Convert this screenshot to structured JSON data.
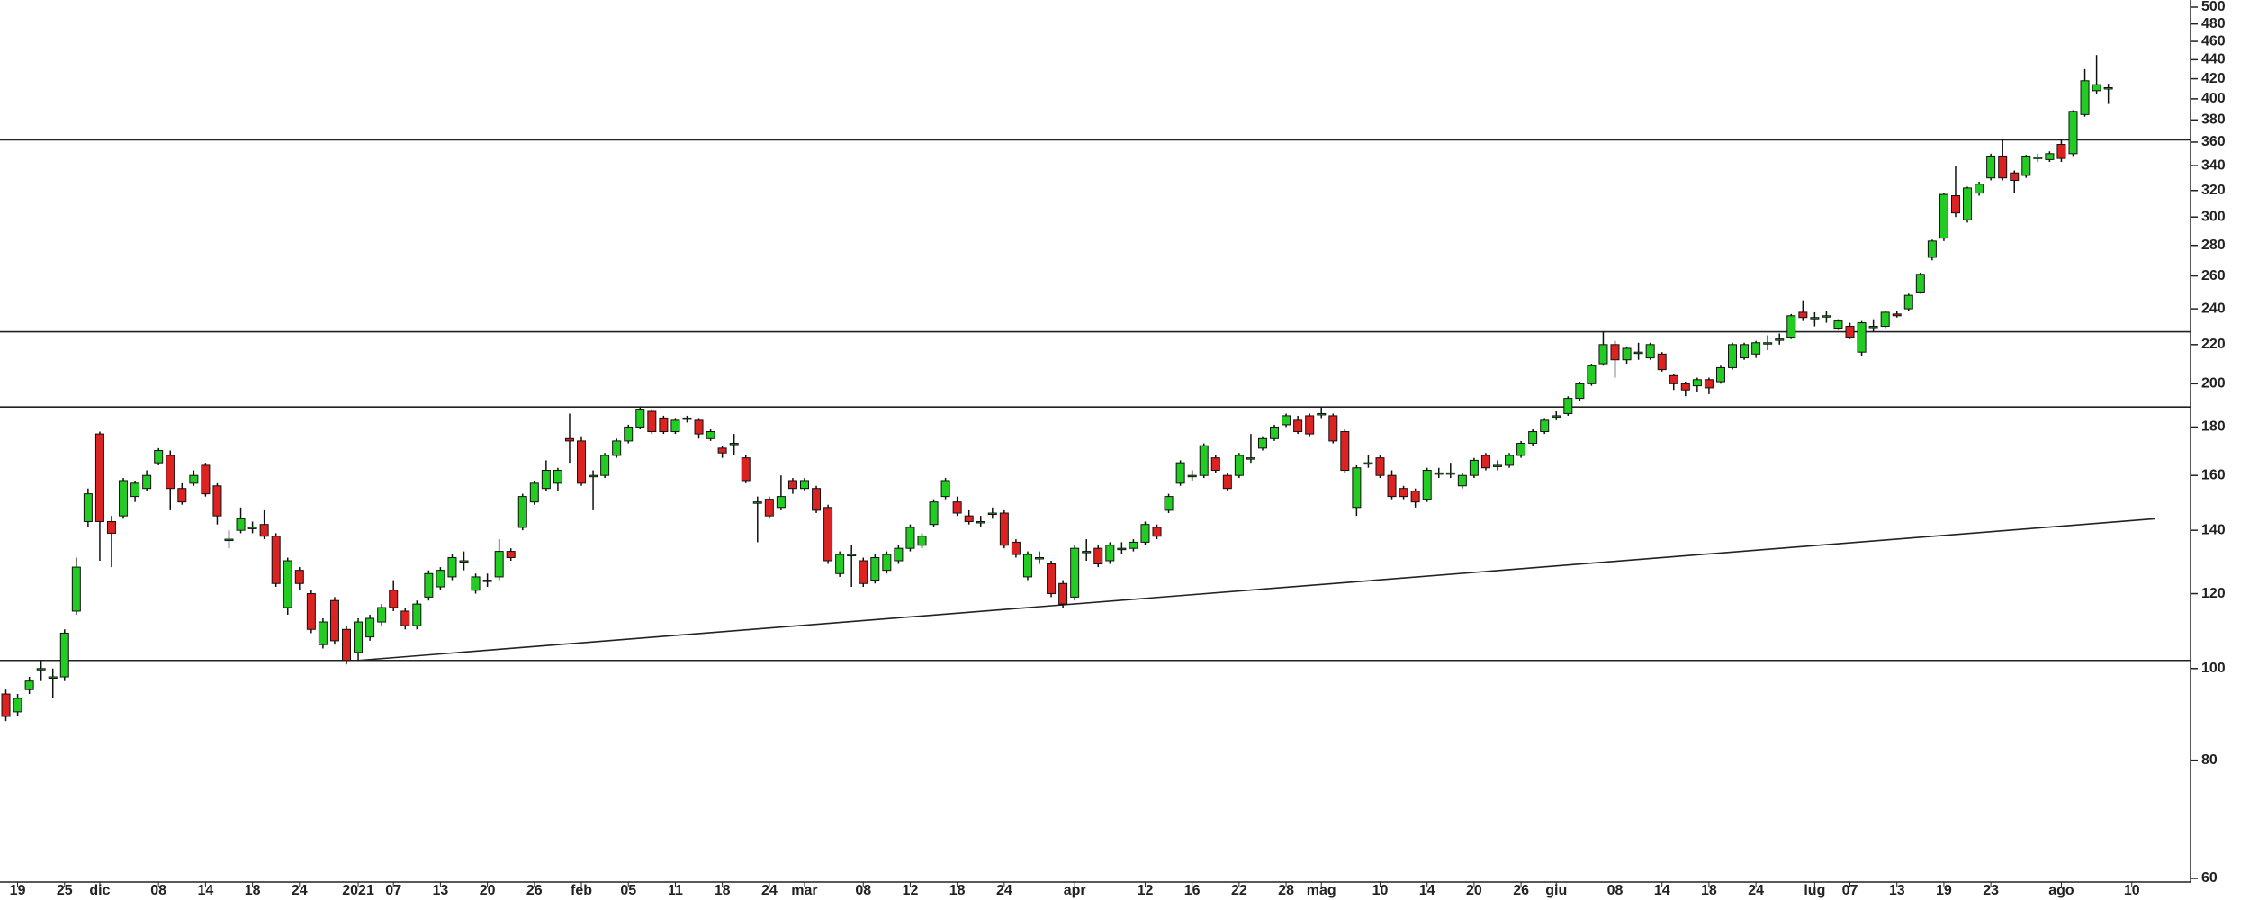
{
  "chart_data": {
    "type": "candlestick",
    "log_scale": true,
    "up_color": "#22cc22",
    "down_color": "#dd2222",
    "outline_color": "#111111",
    "line_color": "#222222",
    "xlim": [
      -0.5,
      186
    ],
    "ylim": [
      60,
      500
    ],
    "yticks": [
      60,
      80,
      100,
      120,
      140,
      160,
      180,
      200,
      220,
      240,
      260,
      280,
      300,
      320,
      340,
      360,
      380,
      400,
      420,
      440,
      460,
      480,
      500
    ],
    "xticks": [
      {
        "value": 1,
        "label": "19"
      },
      {
        "value": 5,
        "label": "25"
      },
      {
        "value": 8,
        "label": "dic"
      },
      {
        "value": 13,
        "label": "08"
      },
      {
        "value": 17,
        "label": "14"
      },
      {
        "value": 21,
        "label": "18"
      },
      {
        "value": 25,
        "label": "24"
      },
      {
        "value": 30,
        "label": "2021"
      },
      {
        "value": 33,
        "label": "07"
      },
      {
        "value": 37,
        "label": "13"
      },
      {
        "value": 41,
        "label": "20"
      },
      {
        "value": 45,
        "label": "26"
      },
      {
        "value": 49,
        "label": "feb"
      },
      {
        "value": 53,
        "label": "05"
      },
      {
        "value": 57,
        "label": "11"
      },
      {
        "value": 61,
        "label": "18"
      },
      {
        "value": 65,
        "label": "24"
      },
      {
        "value": 68,
        "label": "mar"
      },
      {
        "value": 73,
        "label": "08"
      },
      {
        "value": 77,
        "label": "12"
      },
      {
        "value": 81,
        "label": "18"
      },
      {
        "value": 85,
        "label": "24"
      },
      {
        "value": 91,
        "label": "apr"
      },
      {
        "value": 97,
        "label": "12"
      },
      {
        "value": 101,
        "label": "16"
      },
      {
        "value": 105,
        "label": "22"
      },
      {
        "value": 109,
        "label": "28"
      },
      {
        "value": 112,
        "label": "mag"
      },
      {
        "value": 117,
        "label": "10"
      },
      {
        "value": 121,
        "label": "14"
      },
      {
        "value": 125,
        "label": "20"
      },
      {
        "value": 129,
        "label": "26"
      },
      {
        "value": 132,
        "label": "giu"
      },
      {
        "value": 137,
        "label": "08"
      },
      {
        "value": 141,
        "label": "14"
      },
      {
        "value": 145,
        "label": "18"
      },
      {
        "value": 149,
        "label": "24"
      },
      {
        "value": 154,
        "label": "lug"
      },
      {
        "value": 157,
        "label": "07"
      },
      {
        "value": 161,
        "label": "13"
      },
      {
        "value": 165,
        "label": "19"
      },
      {
        "value": 169,
        "label": "23"
      },
      {
        "value": 175,
        "label": "ago"
      },
      {
        "value": 181,
        "label": "10"
      }
    ],
    "hlines": [
      102,
      189,
      227,
      362
    ],
    "trendline": {
      "x": [
        30,
        183
      ],
      "y": [
        102,
        144
      ]
    },
    "candles": [
      [
        94,
        95,
        88,
        89
      ],
      [
        90,
        94,
        89,
        93
      ],
      [
        95,
        98,
        94,
        97
      ],
      [
        100,
        102,
        97,
        100
      ],
      [
        98,
        100,
        93,
        98
      ],
      [
        98,
        110,
        97,
        109
      ],
      [
        115,
        131,
        114,
        128
      ],
      [
        143,
        155,
        141,
        153
      ],
      [
        177,
        178,
        130,
        143
      ],
      [
        143,
        145,
        128,
        139
      ],
      [
        145,
        159,
        144,
        158
      ],
      [
        152,
        158,
        150,
        157
      ],
      [
        155,
        162,
        154,
        160
      ],
      [
        165,
        171,
        164,
        170
      ],
      [
        168,
        170,
        147,
        155
      ],
      [
        155,
        157,
        149,
        150
      ],
      [
        157,
        162,
        156,
        160
      ],
      [
        164,
        165,
        152,
        153
      ],
      [
        156,
        157,
        142,
        145
      ],
      [
        137,
        140,
        134,
        137
      ],
      [
        140,
        148,
        139,
        144
      ],
      [
        141,
        143,
        139,
        141
      ],
      [
        142,
        147,
        137,
        138
      ],
      [
        138,
        139,
        122,
        123
      ],
      [
        116,
        131,
        114,
        130
      ],
      [
        127,
        128,
        121,
        123
      ],
      [
        120,
        121,
        109,
        110
      ],
      [
        106,
        113,
        105,
        112
      ],
      [
        118,
        119,
        106,
        107
      ],
      [
        110,
        111,
        101,
        102
      ],
      [
        104,
        113,
        102,
        112
      ],
      [
        108,
        114,
        107,
        113
      ],
      [
        112,
        117,
        111,
        116
      ],
      [
        121,
        124,
        115,
        116
      ],
      [
        115,
        116,
        110,
        111
      ],
      [
        111,
        118,
        110,
        117
      ],
      [
        119,
        127,
        118,
        126
      ],
      [
        122,
        128,
        121,
        127
      ],
      [
        125,
        132,
        124,
        131
      ],
      [
        130,
        133,
        127,
        130
      ],
      [
        121,
        126,
        120,
        125
      ],
      [
        124,
        126,
        122,
        124
      ],
      [
        125,
        137,
        124,
        133
      ],
      [
        133,
        134,
        130,
        131
      ],
      [
        141,
        153,
        140,
        152
      ],
      [
        150,
        158,
        149,
        157
      ],
      [
        155,
        166,
        154,
        162
      ],
      [
        157,
        163,
        154,
        162
      ],
      [
        175,
        186,
        165,
        174
      ],
      [
        174,
        176,
        156,
        157
      ],
      [
        160,
        162,
        147,
        160
      ],
      [
        160,
        169,
        159,
        168
      ],
      [
        168,
        175,
        167,
        174
      ],
      [
        174,
        181,
        173,
        180
      ],
      [
        180,
        189,
        179,
        188
      ],
      [
        187,
        188,
        177,
        178
      ],
      [
        184,
        185,
        177,
        178
      ],
      [
        178,
        184,
        177,
        183
      ],
      [
        184,
        185,
        182,
        184
      ],
      [
        183,
        184,
        175,
        177
      ],
      [
        175,
        179,
        174,
        178
      ],
      [
        171,
        172,
        167,
        169
      ],
      [
        173,
        177,
        168,
        173
      ],
      [
        167,
        168,
        157,
        158
      ],
      [
        150,
        152,
        136,
        150
      ],
      [
        151,
        152,
        144,
        145
      ],
      [
        148,
        160,
        147,
        152
      ],
      [
        158,
        159,
        153,
        155
      ],
      [
        155,
        159,
        154,
        158
      ],
      [
        155,
        156,
        146,
        147
      ],
      [
        148,
        149,
        129,
        130
      ],
      [
        126,
        133,
        125,
        132
      ],
      [
        132,
        135,
        122,
        132
      ],
      [
        130,
        131,
        122,
        123
      ],
      [
        124,
        132,
        123,
        131
      ],
      [
        127,
        133,
        126,
        132
      ],
      [
        130,
        135,
        129,
        134
      ],
      [
        134,
        142,
        133,
        141
      ],
      [
        135,
        139,
        134,
        138
      ],
      [
        142,
        151,
        141,
        150
      ],
      [
        152,
        159,
        151,
        158
      ],
      [
        150,
        152,
        145,
        146
      ],
      [
        145,
        147,
        142,
        143
      ],
      [
        143,
        145,
        141,
        143
      ],
      [
        146,
        148,
        144,
        146
      ],
      [
        146,
        147,
        134,
        135
      ],
      [
        136,
        137,
        131,
        132
      ],
      [
        125,
        133,
        124,
        132
      ],
      [
        131,
        133,
        129,
        131
      ],
      [
        129,
        130,
        119,
        120
      ],
      [
        123,
        124,
        116,
        117
      ],
      [
        119,
        135,
        118,
        134
      ],
      [
        133,
        137,
        130,
        133
      ],
      [
        134,
        135,
        128,
        129
      ],
      [
        130,
        136,
        129,
        135
      ],
      [
        134,
        136,
        132,
        134
      ],
      [
        134,
        137,
        133,
        136
      ],
      [
        136,
        143,
        135,
        142
      ],
      [
        141,
        142,
        137,
        138
      ],
      [
        147,
        153,
        146,
        152
      ],
      [
        157,
        166,
        156,
        165
      ],
      [
        160,
        162,
        158,
        160
      ],
      [
        160,
        173,
        159,
        172
      ],
      [
        167,
        168,
        161,
        162
      ],
      [
        160,
        161,
        154,
        155
      ],
      [
        160,
        169,
        159,
        168
      ],
      [
        167,
        177,
        165,
        167
      ],
      [
        171,
        176,
        170,
        175
      ],
      [
        175,
        181,
        174,
        180
      ],
      [
        181,
        186,
        180,
        185
      ],
      [
        183,
        185,
        177,
        178
      ],
      [
        185,
        186,
        176,
        177
      ],
      [
        186,
        189,
        184,
        186
      ],
      [
        185,
        186,
        173,
        174
      ],
      [
        178,
        179,
        161,
        162
      ],
      [
        148,
        164,
        145,
        163
      ],
      [
        165,
        168,
        163,
        165
      ],
      [
        167,
        168,
        159,
        160
      ],
      [
        160,
        162,
        151,
        152
      ],
      [
        155,
        156,
        151,
        152
      ],
      [
        154,
        155,
        148,
        150
      ],
      [
        151,
        163,
        150,
        162
      ],
      [
        161,
        163,
        159,
        161
      ],
      [
        161,
        165,
        159,
        161
      ],
      [
        156,
        161,
        155,
        160
      ],
      [
        160,
        167,
        159,
        166
      ],
      [
        168,
        169,
        162,
        163
      ],
      [
        164,
        166,
        162,
        164
      ],
      [
        164,
        169,
        163,
        168
      ],
      [
        168,
        174,
        167,
        173
      ],
      [
        173,
        179,
        172,
        178
      ],
      [
        178,
        184,
        177,
        183
      ],
      [
        185,
        187,
        183,
        185
      ],
      [
        186,
        194,
        185,
        193
      ],
      [
        193,
        201,
        192,
        200
      ],
      [
        200,
        210,
        199,
        209
      ],
      [
        210,
        227,
        209,
        220
      ],
      [
        220,
        222,
        203,
        212
      ],
      [
        212,
        219,
        210,
        218
      ],
      [
        216,
        221,
        212,
        216
      ],
      [
        213,
        221,
        212,
        220
      ],
      [
        215,
        216,
        206,
        207
      ],
      [
        204,
        205,
        197,
        200
      ],
      [
        200,
        201,
        194,
        197
      ],
      [
        199,
        203,
        196,
        202
      ],
      [
        202,
        203,
        195,
        198
      ],
      [
        201,
        209,
        200,
        208
      ],
      [
        208,
        221,
        207,
        220
      ],
      [
        213,
        221,
        212,
        220
      ],
      [
        215,
        222,
        213,
        221
      ],
      [
        221,
        225,
        217,
        221
      ],
      [
        223,
        226,
        220,
        223
      ],
      [
        224,
        237,
        223,
        236
      ],
      [
        238,
        245,
        233,
        235
      ],
      [
        235,
        238,
        230,
        235
      ],
      [
        236,
        239,
        232,
        236
      ],
      [
        229,
        234,
        228,
        233
      ],
      [
        230,
        232,
        223,
        224
      ],
      [
        216,
        233,
        214,
        232
      ],
      [
        230,
        234,
        227,
        230
      ],
      [
        230,
        239,
        229,
        238
      ],
      [
        237,
        239,
        235,
        236
      ],
      [
        240,
        249,
        239,
        248
      ],
      [
        250,
        262,
        249,
        261
      ],
      [
        272,
        284,
        270,
        283
      ],
      [
        285,
        318,
        283,
        317
      ],
      [
        316,
        340,
        300,
        303
      ],
      [
        298,
        323,
        296,
        322
      ],
      [
        318,
        327,
        316,
        325
      ],
      [
        330,
        350,
        328,
        348
      ],
      [
        348,
        362,
        328,
        330
      ],
      [
        334,
        336,
        318,
        328
      ],
      [
        332,
        349,
        330,
        348
      ],
      [
        347,
        350,
        343,
        347
      ],
      [
        345,
        352,
        343,
        350
      ],
      [
        358,
        363,
        343,
        346
      ],
      [
        350,
        389,
        348,
        388
      ],
      [
        385,
        430,
        383,
        418
      ],
      [
        408,
        445,
        405,
        414
      ],
      [
        411,
        415,
        395,
        411
      ]
    ]
  }
}
